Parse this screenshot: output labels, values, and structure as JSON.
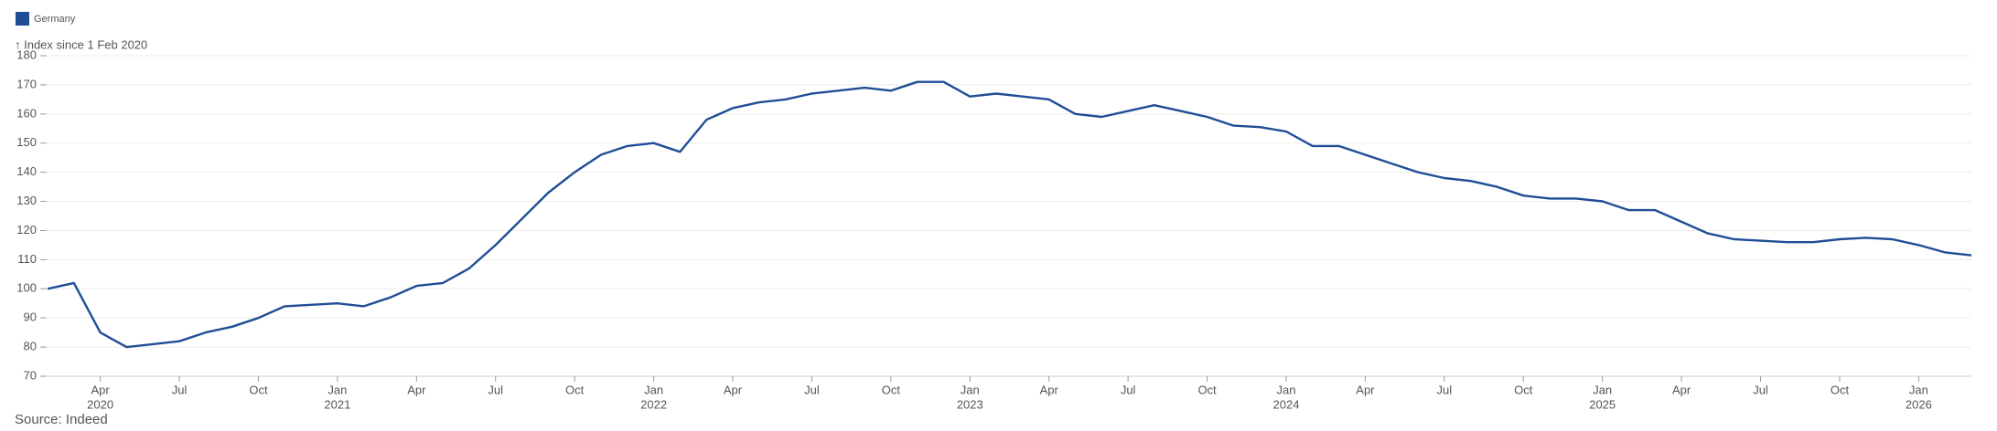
{
  "chart_data": {
    "type": "line",
    "y_label": "↑ Index since 1 Feb 2020",
    "source": "Source: Indeed",
    "legend": "top-left",
    "grid": true,
    "ylim": [
      70,
      180
    ],
    "yticks": [
      70,
      80,
      90,
      100,
      110,
      120,
      130,
      140,
      150,
      160,
      170,
      180
    ],
    "xlim": [
      "2020-02",
      "2026-03"
    ],
    "xticks": [
      {
        "value": "2020-04",
        "label": "Apr",
        "year": "2020"
      },
      {
        "value": "2020-07",
        "label": "Jul"
      },
      {
        "value": "2020-10",
        "label": "Oct"
      },
      {
        "value": "2021-01",
        "label": "Jan",
        "year": "2021"
      },
      {
        "value": "2021-04",
        "label": "Apr"
      },
      {
        "value": "2021-07",
        "label": "Jul"
      },
      {
        "value": "2021-10",
        "label": "Oct"
      },
      {
        "value": "2022-01",
        "label": "Jan",
        "year": "2022"
      },
      {
        "value": "2022-04",
        "label": "Apr"
      },
      {
        "value": "2022-07",
        "label": "Jul"
      },
      {
        "value": "2022-10",
        "label": "Oct"
      },
      {
        "value": "2023-01",
        "label": "Jan",
        "year": "2023"
      },
      {
        "value": "2023-04",
        "label": "Apr"
      },
      {
        "value": "2023-07",
        "label": "Jul"
      },
      {
        "value": "2023-10",
        "label": "Oct"
      },
      {
        "value": "2024-01",
        "label": "Jan",
        "year": "2024"
      },
      {
        "value": "2024-04",
        "label": "Apr"
      },
      {
        "value": "2024-07",
        "label": "Jul"
      },
      {
        "value": "2024-10",
        "label": "Oct"
      },
      {
        "value": "2025-01",
        "label": "Jan",
        "year": "2025"
      },
      {
        "value": "2025-04",
        "label": "Apr"
      },
      {
        "value": "2025-07",
        "label": "Jul"
      },
      {
        "value": "2025-10",
        "label": "Oct"
      },
      {
        "value": "2026-01",
        "label": "Jan",
        "year": "2026"
      }
    ],
    "x": [
      "2020-02",
      "2020-03",
      "2020-04",
      "2020-05",
      "2020-06",
      "2020-07",
      "2020-08",
      "2020-09",
      "2020-10",
      "2020-11",
      "2020-12",
      "2021-01",
      "2021-02",
      "2021-03",
      "2021-04",
      "2021-05",
      "2021-06",
      "2021-07",
      "2021-08",
      "2021-09",
      "2021-10",
      "2021-11",
      "2021-12",
      "2022-01",
      "2022-02",
      "2022-03",
      "2022-04",
      "2022-05",
      "2022-06",
      "2022-07",
      "2022-08",
      "2022-09",
      "2022-10",
      "2022-11",
      "2022-12",
      "2023-01",
      "2023-02",
      "2023-03",
      "2023-04",
      "2023-05",
      "2023-06",
      "2023-07",
      "2023-08",
      "2023-09",
      "2023-10",
      "2023-11",
      "2023-12",
      "2024-01",
      "2024-02",
      "2024-03",
      "2024-04",
      "2024-05",
      "2024-06",
      "2024-07",
      "2024-08",
      "2024-09",
      "2024-10",
      "2024-11",
      "2024-12",
      "2025-01",
      "2025-02",
      "2025-03",
      "2025-04",
      "2025-05",
      "2025-06",
      "2025-07",
      "2025-08",
      "2025-09",
      "2025-10",
      "2025-11",
      "2025-12",
      "2026-01",
      "2026-02",
      "2026-03"
    ],
    "series": [
      {
        "name": "Germany",
        "color": "#1f4e96",
        "values": [
          100,
          102,
          85,
          80,
          81,
          82,
          85,
          87,
          90,
          94,
          94.5,
          95,
          94,
          97,
          101,
          102,
          107,
          115,
          124,
          133,
          140,
          146,
          149,
          150,
          147,
          158,
          162,
          164,
          165,
          167,
          168,
          169,
          168,
          171,
          171,
          166,
          167,
          166,
          165,
          160,
          159,
          161,
          163,
          161,
          159,
          156,
          155.5,
          154,
          149,
          149,
          146,
          143,
          140,
          138,
          137,
          135,
          132,
          131,
          131,
          130,
          127,
          127,
          123,
          119,
          117,
          116.5,
          116,
          116,
          117,
          117.5,
          117,
          115,
          112.5,
          111.5
        ]
      }
    ]
  }
}
